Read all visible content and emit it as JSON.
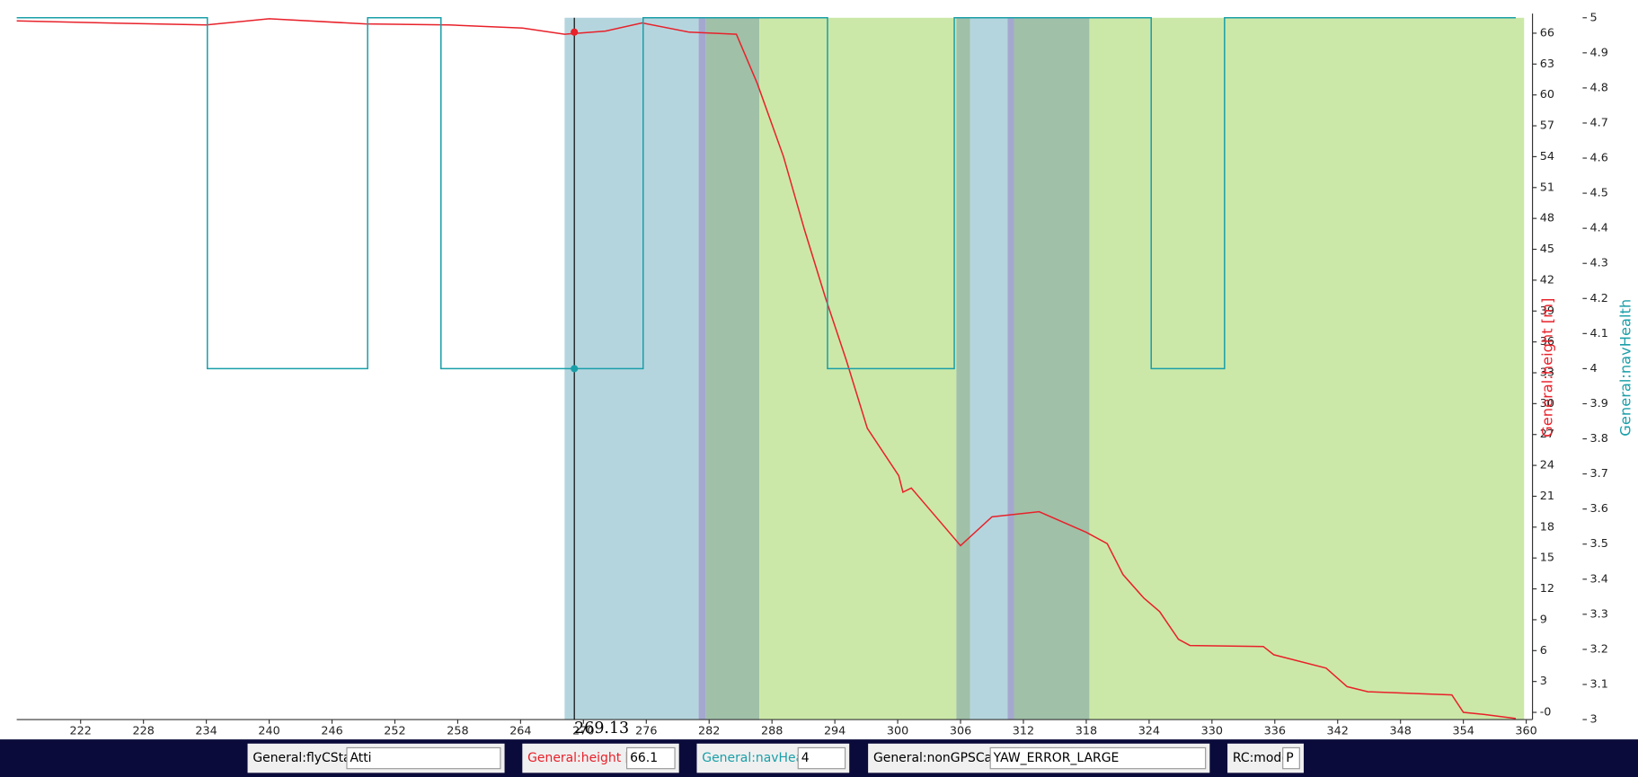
{
  "chart_data": {
    "type": "line",
    "xlim": [
      215.9,
      360.1
    ],
    "xticks": [
      222,
      228,
      234,
      240,
      246,
      252,
      258,
      264,
      270,
      276,
      282,
      288,
      294,
      300,
      306,
      312,
      318,
      324,
      330,
      336,
      342,
      348,
      354,
      360
    ],
    "ylim": [
      -0.7,
      67.5
    ],
    "yticks": [
      {
        "value": 0,
        "label": "-0"
      },
      3,
      6,
      9,
      12,
      15,
      18,
      21,
      24,
      27,
      30,
      33,
      36,
      39,
      42,
      45,
      48,
      51,
      54,
      57,
      60,
      63,
      66
    ],
    "y2lim": [
      3,
      5
    ],
    "y2ticks": [
      3,
      3.1,
      3.2,
      3.3,
      3.4,
      3.5,
      3.6,
      3.7,
      3.8,
      3.9,
      4,
      4.1,
      4.2,
      4.3,
      4.4,
      4.5,
      4.6,
      4.7,
      4.8,
      4.9,
      5
    ],
    "ylabel": "General:height [m]",
    "y2label": "General:navHealth",
    "series": [
      {
        "name": "General:height [m]",
        "color": "#e8212a",
        "x": [
          215.9,
          224.3,
          234.0,
          240.0,
          249.2,
          257.2,
          264.2,
          268.2,
          272.1,
          275.6,
          280.1,
          284.6,
          286.6,
          289.1,
          291.1,
          293.1,
          295.1,
          297.1,
          300.1,
          300.5,
          301.3,
          306.0,
          309.0,
          313.5,
          318.0,
          320.0,
          321.5,
          323.5,
          325.0,
          326.8,
          327.9,
          334.9,
          335.9,
          340.9,
          342.9,
          344.9,
          352.9,
          354.0,
          356.0,
          359.0
        ],
        "values": [
          67.2,
          67.0,
          66.8,
          67.4,
          66.9,
          66.8,
          66.5,
          65.9,
          66.2,
          67.0,
          66.1,
          65.9,
          61.1,
          54.0,
          46.9,
          40.3,
          34.2,
          27.6,
          23.0,
          21.4,
          21.8,
          16.2,
          19.0,
          19.5,
          17.5,
          16.4,
          13.4,
          11.1,
          9.8,
          7.1,
          6.5,
          6.4,
          5.6,
          4.3,
          2.5,
          2.0,
          1.7,
          0,
          -0.2,
          -0.6
        ]
      },
      {
        "name": "General:navHealth",
        "color": "#1a9fa8",
        "axis": "y2",
        "x": [
          215.9,
          234.1,
          234.1,
          249.4,
          249.4,
          256.4,
          256.4,
          275.7,
          275.7,
          293.3,
          293.3,
          305.4,
          305.4,
          324.2,
          324.2,
          331.2,
          331.2,
          359.0
        ],
        "values": [
          5,
          5,
          4,
          4,
          5,
          5,
          4,
          4,
          5,
          5,
          4,
          4,
          5,
          5,
          4,
          4,
          5,
          5
        ]
      }
    ],
    "regions": [
      {
        "start": 268.2,
        "end": 281.0,
        "color": "#b5d5de"
      },
      {
        "start": 281.0,
        "end": 281.7,
        "color": "#a4a8cf"
      },
      {
        "start": 281.7,
        "end": 286.8,
        "color": "#a0c0a8"
      },
      {
        "start": 286.8,
        "end": 305.6,
        "color": "#cce8a8"
      },
      {
        "start": 305.6,
        "end": 306.9,
        "color": "#a0c0a8"
      },
      {
        "start": 306.9,
        "end": 310.5,
        "color": "#b5d5de"
      },
      {
        "start": 310.5,
        "end": 311.1,
        "color": "#a4a8cf"
      },
      {
        "start": 311.1,
        "end": 318.3,
        "color": "#a0c0a8"
      },
      {
        "start": 318.3,
        "end": 359.8,
        "color": "#cce8a8"
      }
    ],
    "cursor": {
      "x": 269.13
    }
  },
  "readouts": [
    {
      "label": "General:flyCState",
      "value": "Atti"
    },
    {
      "label": "General:height [m]",
      "value": 66.1,
      "color": "#e8212a"
    },
    {
      "label": "General:navHealth",
      "value": 4,
      "color": "#1a9fa8"
    },
    {
      "label": "General:nonGPSCause",
      "value": "YAW_ERROR_LARGE"
    },
    {
      "label": "RC:mode",
      "value": "P"
    }
  ]
}
